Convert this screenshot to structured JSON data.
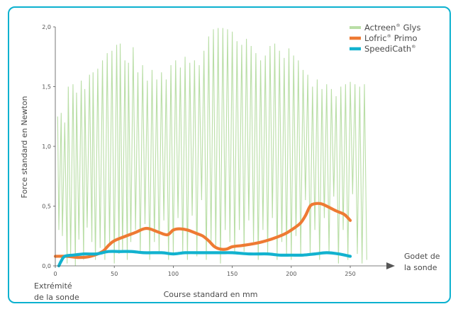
{
  "chart_data": {
    "type": "line",
    "ylabel": "Force standard en Newton",
    "xlabel": "Course standard en mm",
    "x_start_label_line1": "Extrémité",
    "x_start_label_line2": "de la sonde",
    "x_end_label_line1": "Godet de",
    "x_end_label_line2": "la sonde",
    "xlim": [
      0,
      265
    ],
    "ylim": [
      0,
      2.0
    ],
    "x_ticks": [
      0,
      50,
      100,
      150,
      200,
      250
    ],
    "x_tick_labels": [
      "0",
      "50",
      "100",
      "150",
      "200",
      "250"
    ],
    "y_ticks": [
      0,
      0.5,
      1.0,
      1.5,
      2.0
    ],
    "y_tick_labels": [
      "0,0",
      "0,5",
      "1,0",
      "1,5",
      "2,0"
    ],
    "grid": false,
    "legend_position": "top-right",
    "series": [
      {
        "name": "Actreen",
        "name_sup": "®",
        "name_suffix": " Glys",
        "color": "#b9dea6",
        "style": "oscillating",
        "peaks": [
          [
            2,
            1.25
          ],
          [
            5,
            1.28
          ],
          [
            8,
            1.2
          ],
          [
            11,
            1.5
          ],
          [
            15,
            1.52
          ],
          [
            18,
            1.45
          ],
          [
            22,
            1.55
          ],
          [
            25,
            1.48
          ],
          [
            29,
            1.6
          ],
          [
            32,
            1.62
          ],
          [
            36,
            1.65
          ],
          [
            40,
            1.72
          ],
          [
            44,
            1.78
          ],
          [
            48,
            1.8
          ],
          [
            52,
            1.85
          ],
          [
            55,
            1.86
          ],
          [
            59,
            1.72
          ],
          [
            62,
            1.7
          ],
          [
            66,
            1.83
          ],
          [
            70,
            1.62
          ],
          [
            74,
            1.68
          ],
          [
            78,
            1.55
          ],
          [
            82,
            1.64
          ],
          [
            86,
            1.56
          ],
          [
            90,
            1.62
          ],
          [
            94,
            1.56
          ],
          [
            98,
            1.68
          ],
          [
            102,
            1.72
          ],
          [
            106,
            1.66
          ],
          [
            110,
            1.75
          ],
          [
            114,
            1.7
          ],
          [
            118,
            1.72
          ],
          [
            122,
            1.68
          ],
          [
            126,
            1.8
          ],
          [
            130,
            1.92
          ],
          [
            134,
            1.98
          ],
          [
            138,
            1.99
          ],
          [
            142,
            1.99
          ],
          [
            146,
            1.98
          ],
          [
            150,
            1.96
          ],
          [
            154,
            1.88
          ],
          [
            158,
            1.85
          ],
          [
            162,
            1.9
          ],
          [
            166,
            1.84
          ],
          [
            170,
            1.78
          ],
          [
            174,
            1.72
          ],
          [
            178,
            1.76
          ],
          [
            182,
            1.84
          ],
          [
            186,
            1.86
          ],
          [
            190,
            1.8
          ],
          [
            194,
            1.74
          ],
          [
            198,
            1.82
          ],
          [
            202,
            1.76
          ],
          [
            206,
            1.72
          ],
          [
            210,
            1.64
          ],
          [
            214,
            1.6
          ],
          [
            218,
            1.5
          ],
          [
            222,
            1.56
          ],
          [
            226,
            1.48
          ],
          [
            230,
            1.52
          ],
          [
            234,
            1.48
          ],
          [
            238,
            1.42
          ],
          [
            242,
            1.5
          ],
          [
            246,
            1.52
          ],
          [
            250,
            1.54
          ],
          [
            254,
            1.52
          ],
          [
            258,
            1.5
          ],
          [
            262,
            1.52
          ]
        ],
        "troughs": [
          [
            3,
            0.3
          ],
          [
            6,
            0.25
          ],
          [
            10,
            0.02
          ],
          [
            13,
            0.1
          ],
          [
            17,
            0.0
          ],
          [
            20,
            0.22
          ],
          [
            24,
            0.05
          ],
          [
            27,
            0.32
          ],
          [
            31,
            0.2
          ],
          [
            34,
            0.05
          ],
          [
            38,
            0.15
          ],
          [
            42,
            0.05
          ],
          [
            46,
            0.18
          ],
          [
            50,
            0.02
          ],
          [
            54,
            0.1
          ],
          [
            57,
            0.12
          ],
          [
            61,
            0.05
          ],
          [
            64,
            0.2
          ],
          [
            68,
            0.3
          ],
          [
            72,
            0.1
          ],
          [
            76,
            0.35
          ],
          [
            80,
            0.05
          ],
          [
            84,
            0.2
          ],
          [
            88,
            0.1
          ],
          [
            92,
            0.38
          ],
          [
            96,
            0.05
          ],
          [
            100,
            0.1
          ],
          [
            104,
            0.4
          ],
          [
            108,
            0.1
          ],
          [
            112,
            0.05
          ],
          [
            116,
            0.42
          ],
          [
            120,
            0.08
          ],
          [
            124,
            0.55
          ],
          [
            128,
            0.05
          ],
          [
            132,
            0.2
          ],
          [
            136,
            0.15
          ],
          [
            140,
            0.02
          ],
          [
            144,
            0.3
          ],
          [
            148,
            0.2
          ],
          [
            152,
            0.1
          ],
          [
            156,
            0.3
          ],
          [
            160,
            0.12
          ],
          [
            164,
            0.38
          ],
          [
            168,
            0.2
          ],
          [
            172,
            0.05
          ],
          [
            176,
            0.3
          ],
          [
            180,
            0.1
          ],
          [
            184,
            0.4
          ],
          [
            188,
            0.05
          ],
          [
            192,
            0.2
          ],
          [
            196,
            0.1
          ],
          [
            200,
            0.05
          ],
          [
            204,
            0.25
          ],
          [
            208,
            0.1
          ],
          [
            212,
            0.55
          ],
          [
            216,
            0.1
          ],
          [
            220,
            0.3
          ],
          [
            224,
            0.05
          ],
          [
            228,
            0.4
          ],
          [
            232,
            0.1
          ],
          [
            236,
            0.58
          ],
          [
            240,
            0.02
          ],
          [
            244,
            0.3
          ],
          [
            248,
            0.05
          ],
          [
            252,
            0.6
          ],
          [
            256,
            0.1
          ],
          [
            260,
            0.02
          ],
          [
            264,
            0.05
          ]
        ]
      },
      {
        "name": "Lofric",
        "name_sup": "®",
        "name_suffix": " Primo",
        "color": "#ee7a33",
        "points": [
          [
            0,
            0.08
          ],
          [
            10,
            0.08
          ],
          [
            20,
            0.07
          ],
          [
            30,
            0.08
          ],
          [
            40,
            0.12
          ],
          [
            45,
            0.17
          ],
          [
            50,
            0.21
          ],
          [
            60,
            0.25
          ],
          [
            68,
            0.28
          ],
          [
            75,
            0.31
          ],
          [
            80,
            0.31
          ],
          [
            88,
            0.28
          ],
          [
            95,
            0.26
          ],
          [
            100,
            0.3
          ],
          [
            105,
            0.31
          ],
          [
            112,
            0.3
          ],
          [
            120,
            0.27
          ],
          [
            125,
            0.25
          ],
          [
            130,
            0.21
          ],
          [
            135,
            0.16
          ],
          [
            140,
            0.14
          ],
          [
            145,
            0.14
          ],
          [
            150,
            0.16
          ],
          [
            158,
            0.17
          ],
          [
            165,
            0.18
          ],
          [
            175,
            0.2
          ],
          [
            185,
            0.23
          ],
          [
            195,
            0.27
          ],
          [
            203,
            0.32
          ],
          [
            208,
            0.36
          ],
          [
            212,
            0.42
          ],
          [
            216,
            0.5
          ],
          [
            220,
            0.52
          ],
          [
            225,
            0.52
          ],
          [
            230,
            0.5
          ],
          [
            238,
            0.46
          ],
          [
            245,
            0.43
          ],
          [
            250,
            0.38
          ]
        ]
      },
      {
        "name": "SpeediCath",
        "name_sup": "®",
        "name_suffix": "",
        "color": "#12b2cf",
        "points": [
          [
            3,
            0.0
          ],
          [
            5,
            0.04
          ],
          [
            8,
            0.08
          ],
          [
            15,
            0.09
          ],
          [
            25,
            0.1
          ],
          [
            35,
            0.1
          ],
          [
            45,
            0.12
          ],
          [
            55,
            0.12
          ],
          [
            65,
            0.12
          ],
          [
            75,
            0.11
          ],
          [
            90,
            0.11
          ],
          [
            100,
            0.1
          ],
          [
            110,
            0.11
          ],
          [
            125,
            0.11
          ],
          [
            140,
            0.11
          ],
          [
            150,
            0.11
          ],
          [
            165,
            0.1
          ],
          [
            180,
            0.1
          ],
          [
            190,
            0.09
          ],
          [
            200,
            0.09
          ],
          [
            210,
            0.09
          ],
          [
            220,
            0.1
          ],
          [
            230,
            0.11
          ],
          [
            240,
            0.1
          ],
          [
            250,
            0.08
          ]
        ]
      }
    ]
  }
}
